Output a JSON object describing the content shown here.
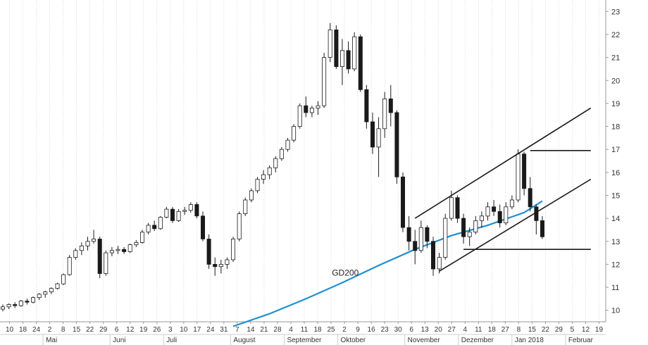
{
  "chart_data": {
    "type": "candlestick",
    "title": "",
    "xlabel": "",
    "ylabel": "",
    "ylim": [
      9.5,
      23.5
    ],
    "y_ticks": [
      10,
      11,
      12,
      13,
      14,
      15,
      16,
      17,
      18,
      19,
      20,
      21,
      22,
      23
    ],
    "y_axis_side": "right",
    "grid": "vertical dotted",
    "colors": {
      "up_body": "#ffffff",
      "down_body": "#1a1a1a",
      "wick": "#1a1a1a",
      "gd200": "#1f8fd0",
      "channel": "#1a1a1a"
    },
    "x_day_labels": [
      "10",
      "18",
      "24",
      "2",
      "8",
      "15",
      "22",
      "29",
      "6",
      "12",
      "19",
      "26",
      "3",
      "10",
      "17",
      "24",
      "31",
      "7",
      "14",
      "21",
      "28",
      "4",
      "11",
      "18",
      "25",
      "2",
      "9",
      "16",
      "23",
      "30",
      "6",
      "13",
      "20",
      "27",
      "4",
      "11",
      "18",
      "27",
      "8",
      "15",
      "22",
      "29",
      "5",
      "12",
      "19"
    ],
    "x_month_labels": [
      "Mai",
      "Juni",
      "Juli",
      "August",
      "September",
      "Oktober",
      "November",
      "Dezember",
      "Jan 2018",
      "Februar"
    ],
    "series": [
      {
        "name": "",
        "type": "candlestick",
        "format": "open, high, low, close",
        "values": [
          [
            10.05,
            10.25,
            9.95,
            10.15
          ],
          [
            10.15,
            10.3,
            10.05,
            10.25
          ],
          [
            10.25,
            10.35,
            10.1,
            10.2
          ],
          [
            10.2,
            10.45,
            10.15,
            10.4
          ],
          [
            10.4,
            10.5,
            10.25,
            10.35
          ],
          [
            10.35,
            10.6,
            10.3,
            10.55
          ],
          [
            10.55,
            10.75,
            10.45,
            10.7
          ],
          [
            10.7,
            10.85,
            10.55,
            10.8
          ],
          [
            10.8,
            11.0,
            10.7,
            10.95
          ],
          [
            10.95,
            11.2,
            10.9,
            11.15
          ],
          [
            11.15,
            11.6,
            11.1,
            11.55
          ],
          [
            11.55,
            12.4,
            11.5,
            12.3
          ],
          [
            12.3,
            12.7,
            12.2,
            12.6
          ],
          [
            12.6,
            12.95,
            12.4,
            12.8
          ],
          [
            12.8,
            13.2,
            12.6,
            13.0
          ],
          [
            13.0,
            13.5,
            12.9,
            13.1
          ],
          [
            13.1,
            13.2,
            11.4,
            11.6
          ],
          [
            11.6,
            12.6,
            11.5,
            12.5
          ],
          [
            12.5,
            12.75,
            12.35,
            12.6
          ],
          [
            12.6,
            12.8,
            12.45,
            12.65
          ],
          [
            12.65,
            12.75,
            12.45,
            12.55
          ],
          [
            12.55,
            12.9,
            12.5,
            12.85
          ],
          [
            12.85,
            13.05,
            12.75,
            12.95
          ],
          [
            12.95,
            13.5,
            12.9,
            13.4
          ],
          [
            13.4,
            13.8,
            13.3,
            13.7
          ],
          [
            13.7,
            13.9,
            13.45,
            13.55
          ],
          [
            13.55,
            14.1,
            13.5,
            14.05
          ],
          [
            14.05,
            14.5,
            14.0,
            14.4
          ],
          [
            14.4,
            14.5,
            13.8,
            13.9
          ],
          [
            13.9,
            14.4,
            13.85,
            14.3
          ],
          [
            14.3,
            14.5,
            14.15,
            14.35
          ],
          [
            14.35,
            14.7,
            14.25,
            14.6
          ],
          [
            14.6,
            14.7,
            14.0,
            14.1
          ],
          [
            14.1,
            14.3,
            13.0,
            13.1
          ],
          [
            13.1,
            13.3,
            11.8,
            12.0
          ],
          [
            12.0,
            12.3,
            11.5,
            11.9
          ],
          [
            11.9,
            12.2,
            11.6,
            12.0
          ],
          [
            12.0,
            12.3,
            11.8,
            12.2
          ],
          [
            12.2,
            13.2,
            12.1,
            13.1
          ],
          [
            13.1,
            14.3,
            13.0,
            14.2
          ],
          [
            14.2,
            14.9,
            14.1,
            14.8
          ],
          [
            14.8,
            15.3,
            14.7,
            15.2
          ],
          [
            15.2,
            15.8,
            15.1,
            15.7
          ],
          [
            15.7,
            16.1,
            15.5,
            15.9
          ],
          [
            15.9,
            16.3,
            15.7,
            16.2
          ],
          [
            16.2,
            16.7,
            16.0,
            16.6
          ],
          [
            16.6,
            17.1,
            16.5,
            17.0
          ],
          [
            17.0,
            17.5,
            16.9,
            17.4
          ],
          [
            17.4,
            18.1,
            17.3,
            18.0
          ],
          [
            18.0,
            19.0,
            17.9,
            18.9
          ],
          [
            18.9,
            19.3,
            18.4,
            18.6
          ],
          [
            18.6,
            18.9,
            18.4,
            18.8
          ],
          [
            18.8,
            19.1,
            18.5,
            18.9
          ],
          [
            18.9,
            21.2,
            18.8,
            21.0
          ],
          [
            21.0,
            22.5,
            20.8,
            22.2
          ],
          [
            22.2,
            22.4,
            20.5,
            20.6
          ],
          [
            20.6,
            21.8,
            19.8,
            21.3
          ],
          [
            21.3,
            21.7,
            20.3,
            20.5
          ],
          [
            20.5,
            22.1,
            20.4,
            21.9
          ],
          [
            21.9,
            22.0,
            19.5,
            19.6
          ],
          [
            19.6,
            19.8,
            17.9,
            18.2
          ],
          [
            18.2,
            18.6,
            16.8,
            17.1
          ],
          [
            17.1,
            18.4,
            15.8,
            17.9
          ],
          [
            17.9,
            19.5,
            17.5,
            19.2
          ],
          [
            19.2,
            19.8,
            18.0,
            18.6
          ],
          [
            18.6,
            18.7,
            15.5,
            15.8
          ],
          [
            15.8,
            16.0,
            13.4,
            13.6
          ],
          [
            13.6,
            14.1,
            12.6,
            13.0
          ],
          [
            13.0,
            13.5,
            12.0,
            12.6
          ],
          [
            12.6,
            13.9,
            12.5,
            13.6
          ],
          [
            13.6,
            13.7,
            12.7,
            13.0
          ],
          [
            13.0,
            13.2,
            11.5,
            11.8
          ],
          [
            11.8,
            12.5,
            11.6,
            12.3
          ],
          [
            12.3,
            14.2,
            12.2,
            14.0
          ],
          [
            14.0,
            15.2,
            13.9,
            14.9
          ],
          [
            14.9,
            15.0,
            13.8,
            14.0
          ],
          [
            14.0,
            14.2,
            12.9,
            13.2
          ],
          [
            13.2,
            13.6,
            12.8,
            13.4
          ],
          [
            13.4,
            14.1,
            13.3,
            13.9
          ],
          [
            13.9,
            14.3,
            13.6,
            14.1
          ],
          [
            14.1,
            14.7,
            13.9,
            14.5
          ],
          [
            14.5,
            14.8,
            14.1,
            14.3
          ],
          [
            14.3,
            14.6,
            13.6,
            13.8
          ],
          [
            13.8,
            14.7,
            13.7,
            14.5
          ],
          [
            14.5,
            15.0,
            14.4,
            14.8
          ],
          [
            14.8,
            17.0,
            14.7,
            16.8
          ],
          [
            16.8,
            16.9,
            15.0,
            15.3
          ],
          [
            15.3,
            15.8,
            14.3,
            14.5
          ],
          [
            14.5,
            14.6,
            13.3,
            13.9
          ],
          [
            13.9,
            14.1,
            13.1,
            13.2
          ]
        ]
      },
      {
        "name": "GD200",
        "type": "line",
        "x": [
          38,
          44,
          50,
          56,
          62,
          68,
          74,
          80,
          86,
          89
        ],
        "values": [
          9.3,
          9.85,
          10.5,
          11.2,
          11.95,
          12.65,
          13.25,
          13.7,
          14.25,
          14.75
        ]
      }
    ],
    "x_range": [
      0,
      99
    ],
    "candle_start_x": 0,
    "candle_step_x": 1.0,
    "channel_lines": [
      {
        "x": [
          68,
          97
        ],
        "y": [
          14.0,
          18.8
        ]
      },
      {
        "x": [
          72,
          97
        ],
        "y": [
          11.7,
          15.7
        ]
      }
    ],
    "horizontal_lines": [
      {
        "x": [
          87,
          97
        ],
        "y": 16.95
      },
      {
        "x": [
          76,
          97
        ],
        "y": 12.65
      }
    ],
    "annotations": [
      {
        "text": "GD200",
        "x": 56.5,
        "y": 11.5
      }
    ]
  }
}
